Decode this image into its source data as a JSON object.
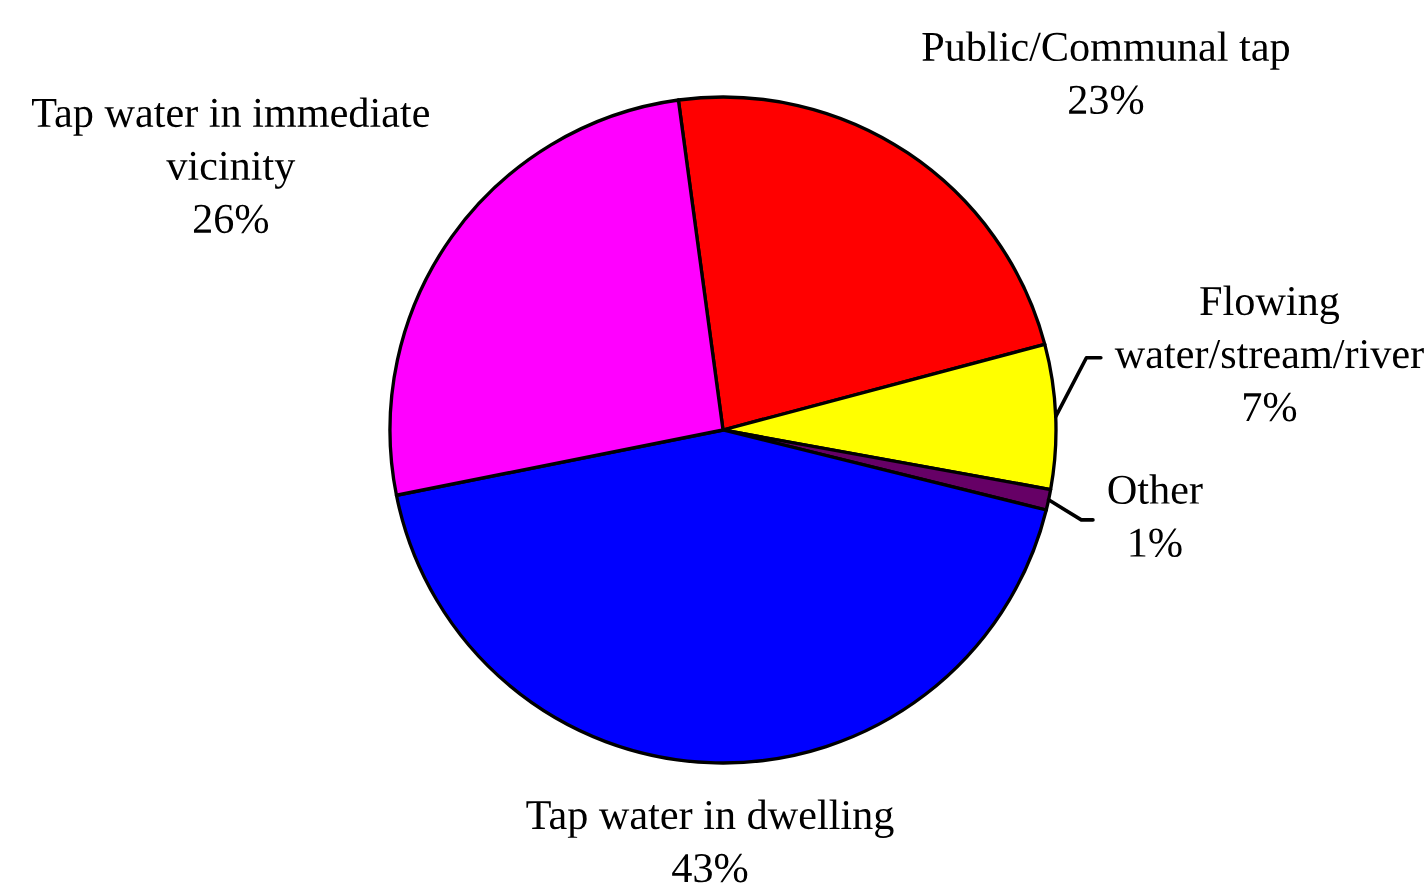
{
  "chart_data": {
    "type": "pie",
    "categories": [
      "Public/Communal tap",
      "Flowing water/stream/river",
      "Other",
      "Tap water in dwelling",
      "Tap water in immediate vicinity"
    ],
    "values": [
      23,
      7,
      1,
      43,
      26
    ],
    "colors": [
      "#ff0000",
      "#ffff00",
      "#660066",
      "#0000ff",
      "#ff00ff"
    ],
    "value_labels": [
      "23%",
      "7%",
      "1%",
      "43%",
      "26%"
    ]
  }
}
